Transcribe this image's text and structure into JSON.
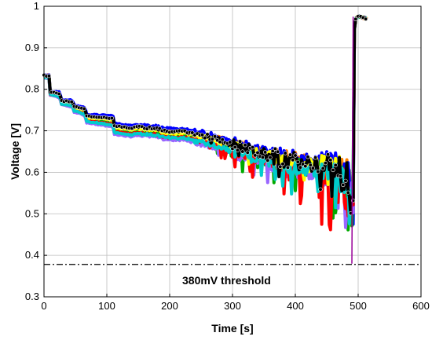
{
  "chart_data": {
    "type": "scatter",
    "title": "",
    "xlabel": "Time  [s]",
    "ylabel": "Voltage [V]",
    "xlim": [
      0,
      600
    ],
    "ylim": [
      0.3,
      1.0
    ],
    "xticks": [
      0,
      100,
      200,
      300,
      400,
      500,
      600
    ],
    "yticks": [
      0.3,
      0.4,
      0.5,
      0.6,
      0.7,
      0.8,
      0.9,
      1.0
    ],
    "xtick_labels": [
      "0",
      "100",
      "200",
      "300",
      "400",
      "500",
      "600"
    ],
    "ytick_labels": [
      "0.3",
      "0.4",
      "0.5",
      "0.6",
      "0.7",
      "0.8",
      "0.9",
      "1"
    ],
    "grid": true,
    "threshold": {
      "y": 0.378,
      "label": "380mV threshold",
      "style": "dash-dot",
      "color": "#000000"
    },
    "series": [
      {
        "color": "#808080",
        "offset": -0.004,
        "upper": 0.013,
        "drop": 0.3
      },
      {
        "color": "#ff8000",
        "offset": 0.002,
        "upper": 0.012,
        "drop": 0.35
      },
      {
        "color": "#0000ff",
        "offset": 0.006,
        "upper": 0.016,
        "drop": 0.4
      },
      {
        "color": "#00aa00",
        "offset": -0.012,
        "upper": 0.005,
        "drop": 1.0
      },
      {
        "color": "#9966ff",
        "offset": -0.02,
        "upper": 0.0,
        "drop": 0.95
      },
      {
        "color": "#ff0000",
        "offset": -0.014,
        "upper": 0.004,
        "drop": 1.15
      },
      {
        "color": "#ffff00",
        "offset": -0.004,
        "upper": 0.01,
        "drop": 0.6
      },
      {
        "color": "#00cccc",
        "offset": -0.016,
        "upper": 0.003,
        "drop": 0.8
      },
      {
        "color": "#000000",
        "offset": 0.0,
        "upper": 0.012,
        "drop": 0.55
      }
    ],
    "trend": {
      "x": [
        0,
        8,
        10,
        25,
        28,
        45,
        48,
        65,
        68,
        110,
        112,
        140,
        145,
        180,
        190,
        215,
        218,
        240,
        255,
        280,
        300,
        320,
        340,
        360,
        380,
        400,
        420,
        440,
        460,
        480,
        488,
        490,
        492,
        495,
        500,
        515
      ],
      "y": [
        0.833,
        0.833,
        0.793,
        0.79,
        0.772,
        0.77,
        0.758,
        0.752,
        0.735,
        0.73,
        0.712,
        0.706,
        0.71,
        0.705,
        0.7,
        0.697,
        0.7,
        0.692,
        0.688,
        0.678,
        0.668,
        0.658,
        0.648,
        0.64,
        0.632,
        0.628,
        0.622,
        0.618,
        0.615,
        0.612,
        0.59,
        0.56,
        0.9,
        0.97,
        0.978,
        0.972
      ]
    }
  }
}
